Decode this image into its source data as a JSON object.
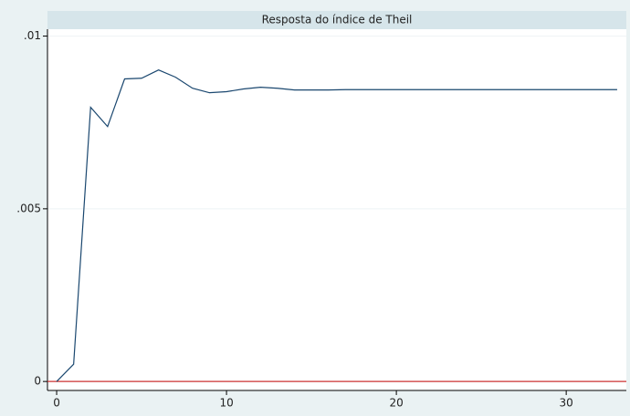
{
  "chart_data": {
    "type": "line",
    "title": "Resposta do índice de Theil",
    "x": [
      0,
      1,
      2,
      3,
      4,
      5,
      6,
      7,
      8,
      9,
      10,
      11,
      12,
      13,
      14,
      15,
      16,
      17,
      18,
      19,
      20,
      21,
      22,
      23,
      24,
      25,
      26,
      27,
      28,
      29,
      30,
      31,
      32,
      33
    ],
    "series": [
      {
        "color": "#1a476f",
        "values": [
          0,
          0.0005,
          0.00794,
          0.00738,
          0.00876,
          0.00878,
          0.00902,
          0.00881,
          0.00849,
          0.00836,
          0.00839,
          0.00847,
          0.00852,
          0.00849,
          0.00844,
          0.00844,
          0.00844,
          0.00845,
          0.00845,
          0.00845,
          0.00845,
          0.00845,
          0.00845,
          0.00845,
          0.00845,
          0.00845,
          0.00845,
          0.00845,
          0.00845,
          0.00845,
          0.00845,
          0.00845,
          0.00845,
          0.00845
        ]
      }
    ],
    "yline": {
      "value": 0,
      "color": "#cc3333"
    },
    "xlim": [
      -0.54,
      33.54
    ],
    "ylim": [
      -0.00026,
      0.0102
    ],
    "xticks": [
      0,
      10,
      20,
      30
    ],
    "yticks": [
      0,
      {
        "value": 0.005,
        "label": ".005"
      },
      {
        "value": 0.01,
        "label": ".01"
      }
    ],
    "grid": true
  }
}
